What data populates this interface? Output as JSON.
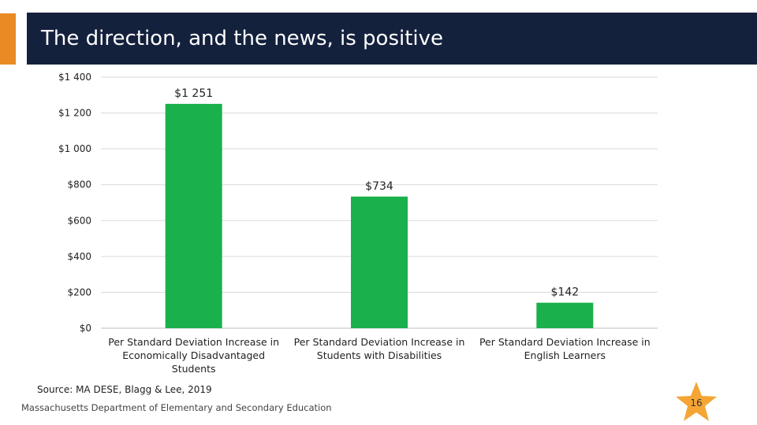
{
  "slide": {
    "title": "The direction, and the news, is positive",
    "source": "Source: MA DESE, Blagg & Lee, 2019",
    "footer": "Massachusetts Department of Elementary and Secondary Education",
    "page_number": "16"
  },
  "colors": {
    "header_bg": "#14213d",
    "accent": "#e98a24",
    "bar": "#1ab04b",
    "star": "#f4a534"
  },
  "chart_data": {
    "type": "bar",
    "title": "",
    "xlabel": "",
    "ylabel": "",
    "categories": [
      [
        "Per Standard Deviation Increase in",
        "Economically Disadvantaged",
        "Students"
      ],
      [
        "Per Standard Deviation Increase in",
        "Students with Disabilities"
      ],
      [
        "Per Standard Deviation Increase in",
        "English Learners"
      ]
    ],
    "values": [
      1251,
      734,
      142
    ],
    "data_labels": [
      "$1 251",
      "$734",
      "$142"
    ],
    "ylim": [
      0,
      1400
    ],
    "yticks": [
      0,
      200,
      400,
      600,
      800,
      1000,
      1200,
      1400
    ],
    "ytick_labels": [
      "$0",
      "$200",
      "$400",
      "$600",
      "$800",
      "$1 000",
      "$1 200",
      "$1 400"
    ],
    "grid": true,
    "legend": "none"
  }
}
